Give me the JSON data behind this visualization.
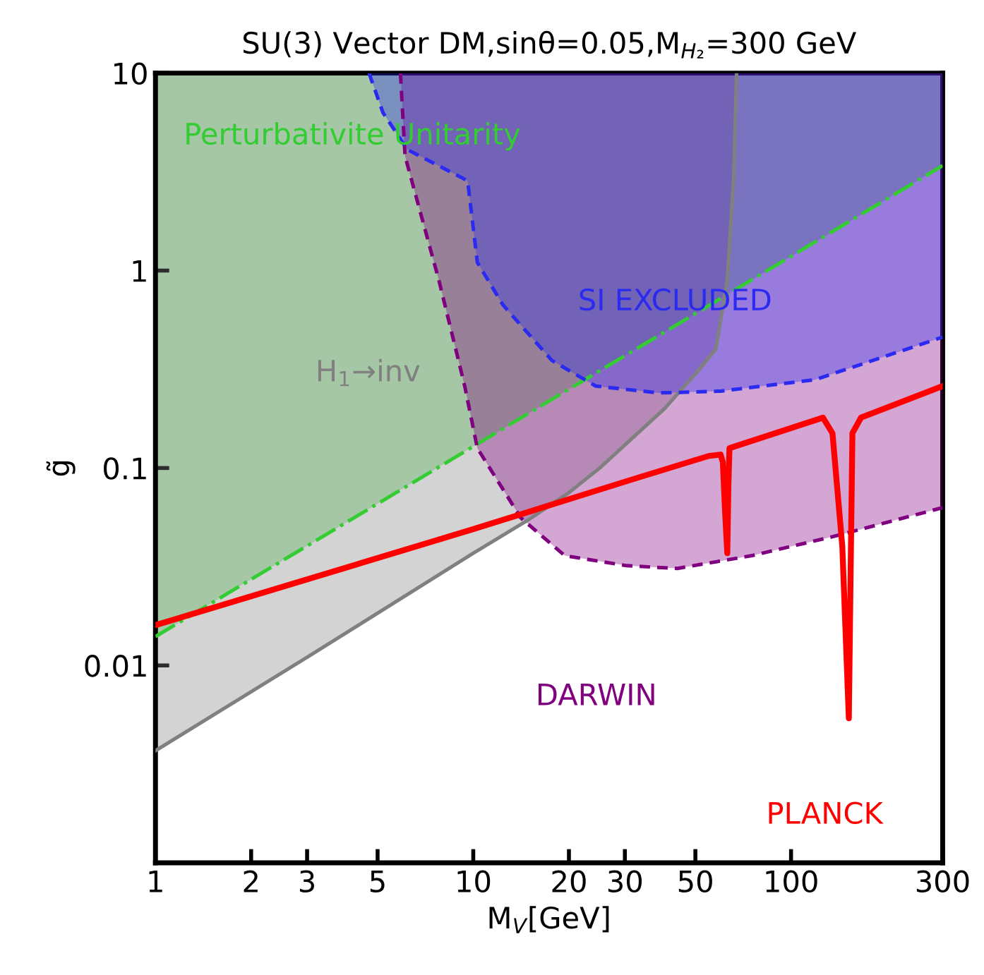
{
  "chart_data": {
    "type": "line",
    "title": "SU(3) Vector DM,sinθ=0.05,M$_{H₂}$=300 GeV",
    "xlabel": "M$_{V}$[GeV]",
    "ylabel": "g̃",
    "log": "xy",
    "xlim": [
      1,
      300
    ],
    "ylim": [
      0.001,
      10
    ],
    "xticks": [
      1,
      2,
      3,
      5,
      10,
      20,
      30,
      50,
      100,
      300
    ],
    "yticks": [
      0.01,
      0.1,
      1,
      10
    ],
    "grid": false,
    "legend": false,
    "series": [
      {
        "name": "Perturbativite Unitarity",
        "color": "#33cc33",
        "line_style": "dashdot",
        "x": [
          1,
          300
        ],
        "values": [
          0.014,
          3.4
        ],
        "lower": [
          0.014,
          3.4
        ],
        "upper": [
          10,
          10
        ]
      },
      {
        "name": "H$_{1}$→inv",
        "color": "#808080",
        "line_style": "solid",
        "x": [
          1,
          3,
          10,
          15,
          20,
          25,
          40,
          50,
          58,
          63,
          66,
          67.4
        ],
        "values": [
          0.0037,
          0.011,
          0.037,
          0.055,
          0.075,
          0.1,
          0.2,
          0.3,
          0.4,
          0.9,
          3,
          10
        ],
        "lower": [
          0.0037,
          0.011,
          0.037,
          0.055,
          0.075,
          0.1,
          0.2,
          0.3,
          0.4,
          0.9,
          3,
          10
        ],
        "upper": [
          10,
          10,
          10,
          10,
          10,
          10,
          10,
          10,
          10,
          10,
          10,
          10
        ]
      },
      {
        "name": "DARWIN",
        "color": "#800080",
        "line_style": "dashed",
        "x": [
          5.9,
          6.1,
          7.8,
          9.4,
          10.3,
          14.1,
          19.4,
          30.4,
          43.9,
          75.4,
          136,
          300
        ],
        "values": [
          10,
          3.8,
          0.89,
          0.26,
          0.126,
          0.056,
          0.036,
          0.032,
          0.031,
          0.036,
          0.045,
          0.063
        ],
        "lower": [
          10,
          3.8,
          0.89,
          0.26,
          0.126,
          0.056,
          0.036,
          0.032,
          0.031,
          0.036,
          0.045,
          0.063
        ],
        "upper": [
          10,
          10,
          10,
          10,
          10,
          10,
          10,
          10,
          10,
          10,
          10,
          10
        ]
      },
      {
        "name": "SI EXCLUDED",
        "color": "#2a2af0",
        "line_style": "dashed",
        "x": [
          4.7,
          5.2,
          6.2,
          9.6,
          10.3,
          12.4,
          17.7,
          24.3,
          38.4,
          60,
          119,
          300
        ],
        "values": [
          10,
          6.3,
          4.1,
          2.85,
          1.1,
          0.67,
          0.35,
          0.26,
          0.24,
          0.245,
          0.28,
          0.46
        ],
        "lower": [
          10,
          6.3,
          4.1,
          2.85,
          1.1,
          0.67,
          0.35,
          0.26,
          0.24,
          0.245,
          0.28,
          0.46
        ],
        "upper": [
          10,
          10,
          10,
          10,
          10,
          10,
          10,
          10,
          10,
          10,
          10,
          10
        ]
      },
      {
        "name": "PLANCK",
        "color": "#ff0000",
        "line_style": "solid",
        "x": [
          1,
          10,
          32,
          55,
          60,
          61,
          62,
          63,
          63.5,
          64,
          126,
          135,
          145,
          152,
          154,
          156,
          166,
          300
        ],
        "values": [
          0.016,
          0.049,
          0.088,
          0.115,
          0.117,
          0.107,
          0.06,
          0.037,
          0.08,
          0.126,
          0.18,
          0.15,
          0.04,
          0.0054,
          0.03,
          0.15,
          0.18,
          0.26
        ]
      }
    ]
  }
}
